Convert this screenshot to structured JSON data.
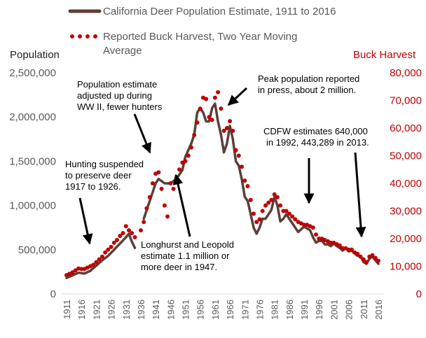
{
  "colors": {
    "population": "#5a4038",
    "harvest": "#c00000",
    "annotation": "#000000"
  },
  "legend": {
    "population_label": "California Deer Population Estimate, 1911 to 2016",
    "harvest_label_line1": "Reported Buck Harvest, Two Year Moving",
    "harvest_label_line2": "Average"
  },
  "chart_data": {
    "type": "line",
    "title": "",
    "ylabel": "Population",
    "y2label": "Buck Harvest",
    "ylim": [
      0,
      2500000
    ],
    "y2lim": [
      0,
      80000
    ],
    "y_ticks": [
      {
        "v": 0,
        "label": "0"
      },
      {
        "v": 500000,
        "label": "500,000"
      },
      {
        "v": 1000000,
        "label": "1,000,000"
      },
      {
        "v": 1500000,
        "label": "1,500,000"
      },
      {
        "v": 2000000,
        "label": "2,000,000"
      },
      {
        "v": 2500000,
        "label": "2,500,000"
      }
    ],
    "y2_ticks": [
      {
        "v": 0,
        "label": "0"
      },
      {
        "v": 10000,
        "label": "10,000"
      },
      {
        "v": 20000,
        "label": "20,000"
      },
      {
        "v": 30000,
        "label": "30,000"
      },
      {
        "v": 40000,
        "label": "40,000"
      },
      {
        "v": 50000,
        "label": "50,000"
      },
      {
        "v": 60000,
        "label": "60,000"
      },
      {
        "v": 70000,
        "label": "70,000"
      },
      {
        "v": 80000,
        "label": "80,000"
      }
    ],
    "xlim": [
      1911,
      2016
    ],
    "x_ticks": [
      "1911",
      "1916",
      "1921",
      "1926",
      "1931",
      "1936",
      "1941",
      "1946",
      "1951",
      "1956",
      "1961",
      "1966",
      "1971",
      "1976",
      "1981",
      "1986",
      "1991",
      "1996",
      "2001",
      "2006",
      "2011",
      "2016"
    ],
    "legend_position": "top",
    "series": [
      {
        "name": "California Deer Population Estimate, 1911 to 2016",
        "axis": "left",
        "style": "solid",
        "segments": [
          [
            [
              1911,
              180000
            ],
            [
              1913,
              210000
            ],
            [
              1915,
              240000
            ],
            [
              1917,
              230000
            ],
            [
              1919,
              260000
            ],
            [
              1921,
              320000
            ],
            [
              1923,
              380000
            ],
            [
              1925,
              430000
            ],
            [
              1927,
              500000
            ],
            [
              1929,
              570000
            ],
            [
              1931,
              640000
            ],
            [
              1932,
              680000
            ],
            [
              1933,
              590000
            ],
            [
              1934,
              520000
            ]
          ],
          [
            [
              1937,
              850000
            ],
            [
              1939,
              1050000
            ],
            [
              1941,
              1250000
            ],
            [
              1942,
              1300000
            ],
            [
              1944,
              1250000
            ],
            [
              1946,
              1250000
            ],
            [
              1948,
              1300000
            ],
            [
              1950,
              1400000
            ],
            [
              1951,
              1550000
            ],
            [
              1953,
              1700000
            ],
            [
              1954,
              1800000
            ],
            [
              1955,
              2050000
            ],
            [
              1956,
              2100000
            ],
            [
              1957,
              2050000
            ],
            [
              1958,
              1950000
            ],
            [
              1959,
              1950000
            ],
            [
              1960,
              2100000
            ],
            [
              1961,
              2150000
            ],
            [
              1962,
              1950000
            ],
            [
              1963,
              1800000
            ],
            [
              1964,
              1600000
            ],
            [
              1965,
              1700000
            ],
            [
              1966,
              1900000
            ],
            [
              1967,
              1750000
            ],
            [
              1968,
              1500000
            ],
            [
              1969,
              1450000
            ],
            [
              1970,
              1300000
            ],
            [
              1971,
              1100000
            ],
            [
              1972,
              1050000
            ],
            [
              1973,
              900000
            ],
            [
              1974,
              750000
            ],
            [
              1975,
              680000
            ],
            [
              1976,
              750000
            ],
            [
              1977,
              850000
            ],
            [
              1978,
              850000
            ],
            [
              1979,
              900000
            ],
            [
              1980,
              950000
            ],
            [
              1981,
              1100000
            ],
            [
              1982,
              1000000
            ],
            [
              1983,
              820000
            ],
            [
              1984,
              850000
            ],
            [
              1985,
              900000
            ],
            [
              1986,
              850000
            ],
            [
              1987,
              800000
            ],
            [
              1988,
              750000
            ],
            [
              1989,
              700000
            ],
            [
              1990,
              730000
            ],
            [
              1991,
              760000
            ],
            [
              1992,
              740000
            ],
            [
              1993,
              720000
            ],
            [
              1994,
              640000
            ],
            [
              1995,
              580000
            ],
            [
              1996,
              600000
            ],
            [
              1997,
              600000
            ],
            [
              1998,
              560000
            ],
            [
              1999,
              560000
            ],
            [
              2000,
              540000
            ],
            [
              2001,
              570000
            ],
            [
              2002,
              540000
            ],
            [
              2003,
              520000
            ],
            [
              2004,
              490000
            ],
            [
              2005,
              520000
            ],
            [
              2006,
              480000
            ],
            [
              2007,
              490000
            ],
            [
              2008,
              460000
            ],
            [
              2009,
              430000
            ],
            [
              2010,
              430000
            ],
            [
              2011,
              360000
            ],
            [
              2012,
              340000
            ],
            [
              2013,
              400000
            ],
            [
              2014,
              420000
            ],
            [
              2015,
              380000
            ],
            [
              2016,
              340000
            ]
          ]
        ]
      },
      {
        "name": "Reported Buck Harvest, Two Year Moving Average",
        "axis": "right",
        "style": "dotted",
        "points": [
          [
            1911,
            6800
          ],
          [
            1912,
            7300
          ],
          [
            1913,
            7800
          ],
          [
            1914,
            8500
          ],
          [
            1915,
            9200
          ],
          [
            1916,
            9000
          ],
          [
            1917,
            9000
          ],
          [
            1918,
            9500
          ],
          [
            1919,
            10000
          ],
          [
            1920,
            10500
          ],
          [
            1921,
            11500
          ],
          [
            1922,
            12500
          ],
          [
            1923,
            13500
          ],
          [
            1924,
            15000
          ],
          [
            1925,
            16000
          ],
          [
            1926,
            17000
          ],
          [
            1927,
            18500
          ],
          [
            1928,
            19500
          ],
          [
            1929,
            21000
          ],
          [
            1930,
            22000
          ],
          [
            1931,
            24500
          ],
          [
            1932,
            23000
          ],
          [
            1933,
            22000
          ],
          [
            1934,
            20500
          ],
          [
            1936,
            23000
          ],
          [
            1937,
            26000
          ],
          [
            1938,
            31000
          ],
          [
            1939,
            35000
          ],
          [
            1940,
            40000
          ],
          [
            1941,
            43500
          ],
          [
            1942,
            44000
          ],
          [
            1943,
            38000
          ],
          [
            1944,
            32000
          ],
          [
            1945,
            28000
          ],
          [
            1946,
            40000
          ],
          [
            1947,
            38000
          ],
          [
            1948,
            42000
          ],
          [
            1949,
            45000
          ],
          [
            1950,
            47500
          ],
          [
            1951,
            48000
          ],
          [
            1952,
            50000
          ],
          [
            1953,
            53000
          ],
          [
            1954,
            57500
          ],
          [
            1955,
            62000
          ],
          [
            1956,
            67000
          ],
          [
            1957,
            71000
          ],
          [
            1958,
            70500
          ],
          [
            1959,
            64000
          ],
          [
            1960,
            63000
          ],
          [
            1961,
            71000
          ],
          [
            1962,
            73000
          ],
          [
            1963,
            67000
          ],
          [
            1964,
            59000
          ],
          [
            1965,
            60000
          ],
          [
            1966,
            62500
          ],
          [
            1967,
            59000
          ],
          [
            1968,
            52000
          ],
          [
            1969,
            50000
          ],
          [
            1970,
            46000
          ],
          [
            1971,
            41000
          ],
          [
            1972,
            39000
          ],
          [
            1973,
            34000
          ],
          [
            1974,
            29000
          ],
          [
            1975,
            26000
          ],
          [
            1976,
            27000
          ],
          [
            1977,
            30000
          ],
          [
            1978,
            32000
          ],
          [
            1979,
            33000
          ],
          [
            1980,
            34000
          ],
          [
            1981,
            36000
          ],
          [
            1982,
            35000
          ],
          [
            1983,
            32000
          ],
          [
            1984,
            30000
          ],
          [
            1985,
            30000
          ],
          [
            1986,
            29000
          ],
          [
            1987,
            28000
          ],
          [
            1988,
            27000
          ],
          [
            1989,
            26000
          ],
          [
            1990,
            25500
          ],
          [
            1991,
            25000
          ],
          [
            1992,
            25000
          ],
          [
            1993,
            24500
          ],
          [
            1994,
            24000
          ],
          [
            1995,
            21500
          ],
          [
            1996,
            20000
          ],
          [
            1997,
            20000
          ],
          [
            1998,
            19500
          ],
          [
            1999,
            19000
          ],
          [
            2000,
            18500
          ],
          [
            2001,
            18500
          ],
          [
            2002,
            18000
          ],
          [
            2003,
            17500
          ],
          [
            2004,
            16500
          ],
          [
            2005,
            16500
          ],
          [
            2006,
            16000
          ],
          [
            2007,
            16000
          ],
          [
            2008,
            15000
          ],
          [
            2009,
            14500
          ],
          [
            2010,
            13500
          ],
          [
            2011,
            12500
          ],
          [
            2012,
            11500
          ],
          [
            2013,
            13500
          ],
          [
            2014,
            14000
          ],
          [
            2015,
            13000
          ],
          [
            2016,
            12000
          ]
        ]
      }
    ],
    "annotations": [
      {
        "id": "population-adjusted",
        "lines": [
          "Population estimate",
          "adjusted up during",
          "WW II, fewer hunters"
        ]
      },
      {
        "id": "peak-population",
        "lines": [
          "Peak population reported",
          "in press, about 2 million."
        ]
      },
      {
        "id": "cdfw-estimates",
        "lines": [
          "CDFW estimates 640,000",
          "in 1992, 443,289 in 2013."
        ]
      },
      {
        "id": "hunting-suspended",
        "lines": [
          "Hunting suspended",
          "to preserve deer",
          "1917 to 1926."
        ]
      },
      {
        "id": "longhurst-leopold",
        "lines": [
          "Longhurst and Leopold",
          "estimate 1.1 million or",
          "more deer in 1947."
        ]
      }
    ]
  }
}
